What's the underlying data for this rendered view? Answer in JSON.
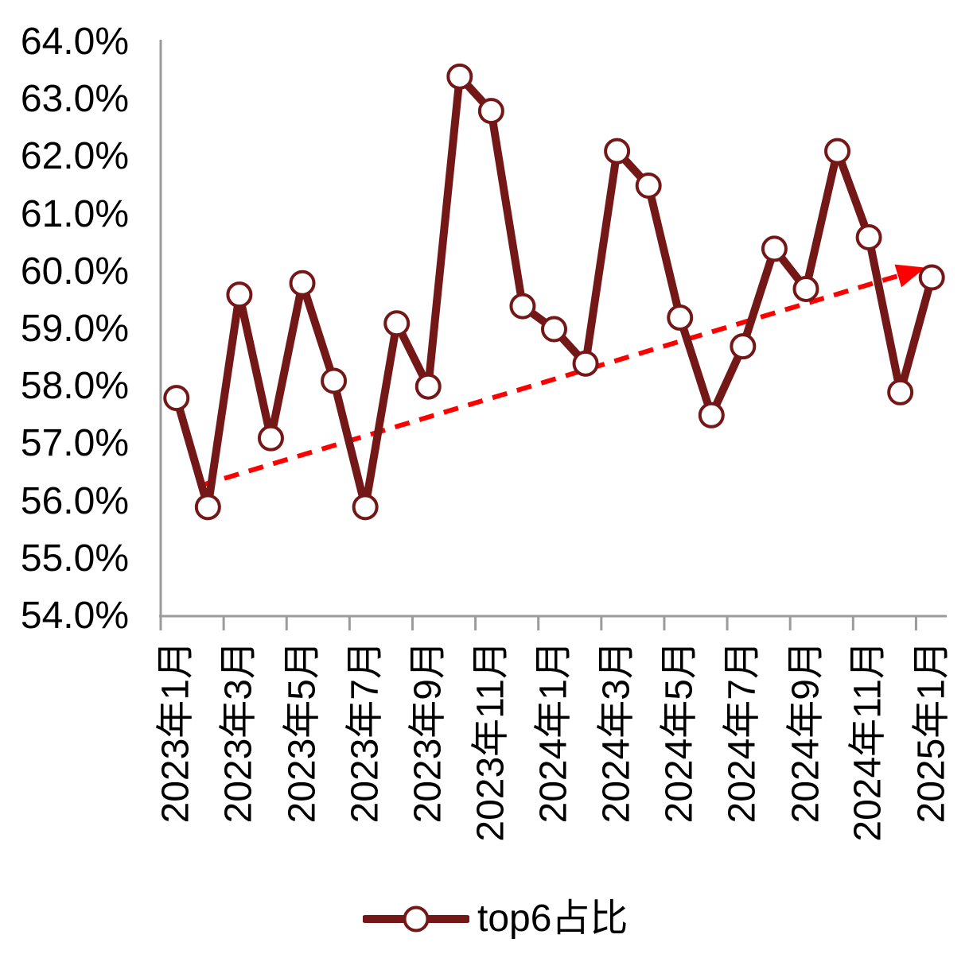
{
  "chart_data": {
    "type": "line",
    "title": "",
    "categories": [
      "2023年1月",
      "2023年2月",
      "2023年3月",
      "2023年4月",
      "2023年5月",
      "2023年6月",
      "2023年7月",
      "2023年8月",
      "2023年9月",
      "2023年10月",
      "2023年11月",
      "2023年12月",
      "2024年1月",
      "2024年2月",
      "2024年3月",
      "2024年4月",
      "2024年5月",
      "2024年6月",
      "2024年7月",
      "2024年8月",
      "2024年9月",
      "2024年10月",
      "2024年11月",
      "2024年12月",
      "2025年1月"
    ],
    "series": [
      {
        "name": "top6占比",
        "values": [
          57.8,
          55.9,
          59.6,
          57.1,
          59.8,
          58.1,
          55.9,
          59.1,
          58.0,
          63.4,
          62.8,
          59.4,
          59.0,
          58.4,
          62.1,
          61.5,
          59.2,
          57.5,
          58.7,
          60.4,
          59.7,
          62.1,
          60.6,
          57.9,
          59.9
        ]
      }
    ],
    "ylim": [
      54.0,
      64.0
    ],
    "y_tick_step": 1.0,
    "y_tick_labels": [
      "64.0%",
      "63.0%",
      "62.0%",
      "61.0%",
      "60.0%",
      "59.0%",
      "58.0%",
      "57.0%",
      "56.0%",
      "55.0%",
      "54.0%"
    ],
    "x_tick_labels": [
      "2023年1月",
      "2023年3月",
      "2023年5月",
      "2023年7月",
      "2023年9月",
      "2023年11月",
      "2024年1月",
      "2024年3月",
      "2024年5月",
      "2024年7月",
      "2024年9月",
      "2024年11月",
      "2025年1月"
    ],
    "x_label_every": 2,
    "grid": "off",
    "legend_position": "bottom",
    "trendline": {
      "style": "dashed",
      "arrow": true,
      "color": "#FF0000",
      "start_index": 1,
      "start_value": 56.3,
      "end_index": 24,
      "end_value": 60.1
    },
    "colors": {
      "series_line": "#731717",
      "marker_fill": "#FFFFFF",
      "marker_stroke": "#731717",
      "trend_red": "#FF0000",
      "axis": "#9B9B9B",
      "text": "#000000"
    }
  }
}
